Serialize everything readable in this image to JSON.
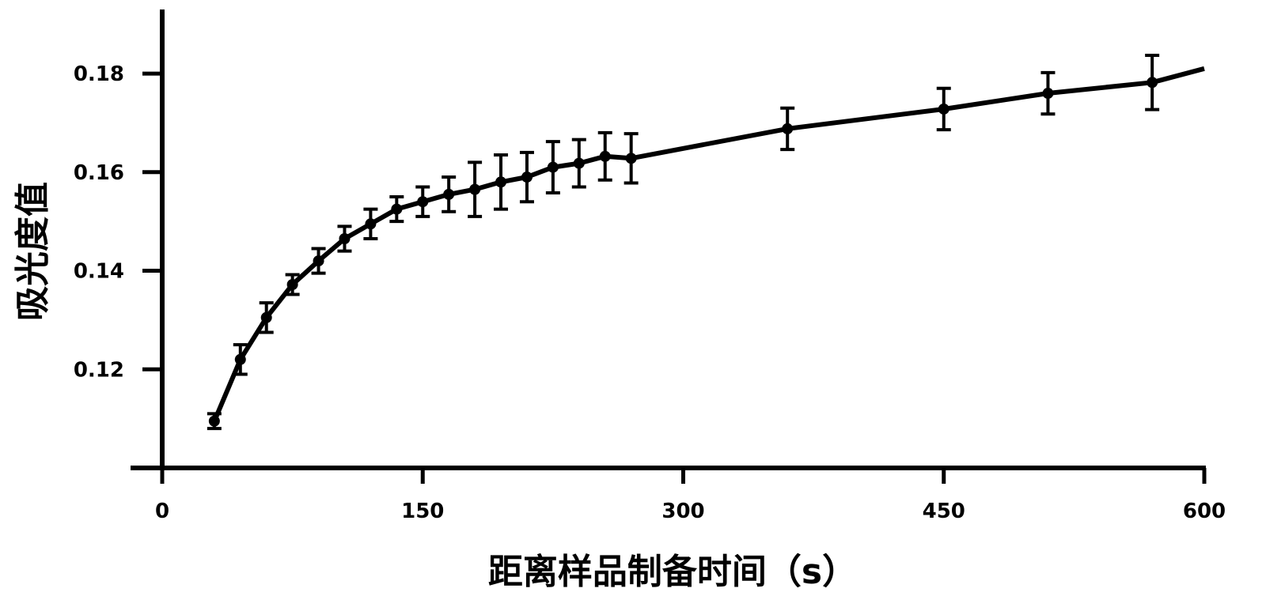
{
  "chart_data": {
    "type": "line",
    "title": "",
    "xlabel": "距离样品制备时间（s）",
    "ylabel": "吸光度值",
    "xlim": [
      0,
      600
    ],
    "ylim": [
      0.1,
      0.193
    ],
    "xticks": [
      0,
      150,
      300,
      450,
      600
    ],
    "yticks": [
      0.12,
      0.14,
      0.16,
      0.18
    ],
    "xtick_labels": [
      "0",
      "150",
      "300",
      "450",
      "600"
    ],
    "ytick_labels": [
      "0.12",
      "0.14",
      "0.16",
      "0.18"
    ],
    "grid": false,
    "legend": "none",
    "series": [
      {
        "color": "#000000",
        "points": [
          {
            "x": 30,
            "y": 0.1095,
            "err": 0.0015
          },
          {
            "x": 45,
            "y": 0.122,
            "err": 0.003
          },
          {
            "x": 60,
            "y": 0.1305,
            "err": 0.003
          },
          {
            "x": 75,
            "y": 0.1372,
            "err": 0.002
          },
          {
            "x": 90,
            "y": 0.142,
            "err": 0.0025
          },
          {
            "x": 105,
            "y": 0.1465,
            "err": 0.0025
          },
          {
            "x": 120,
            "y": 0.1495,
            "err": 0.003
          },
          {
            "x": 135,
            "y": 0.1525,
            "err": 0.0025
          },
          {
            "x": 150,
            "y": 0.154,
            "err": 0.003
          },
          {
            "x": 165,
            "y": 0.1555,
            "err": 0.0035
          },
          {
            "x": 180,
            "y": 0.1565,
            "err": 0.0055
          },
          {
            "x": 195,
            "y": 0.158,
            "err": 0.0055
          },
          {
            "x": 210,
            "y": 0.159,
            "err": 0.005
          },
          {
            "x": 225,
            "y": 0.161,
            "err": 0.0052
          },
          {
            "x": 240,
            "y": 0.1618,
            "err": 0.0048
          },
          {
            "x": 255,
            "y": 0.1632,
            "err": 0.0048
          },
          {
            "x": 270,
            "y": 0.1628,
            "err": 0.005
          },
          {
            "x": 360,
            "y": 0.1688,
            "err": 0.0042
          },
          {
            "x": 450,
            "y": 0.1728,
            "err": 0.0042
          },
          {
            "x": 510,
            "y": 0.176,
            "err": 0.0042
          },
          {
            "x": 570,
            "y": 0.1782,
            "err": 0.0055
          },
          {
            "x": 600,
            "y": 0.181,
            "err": 0
          }
        ]
      }
    ]
  }
}
